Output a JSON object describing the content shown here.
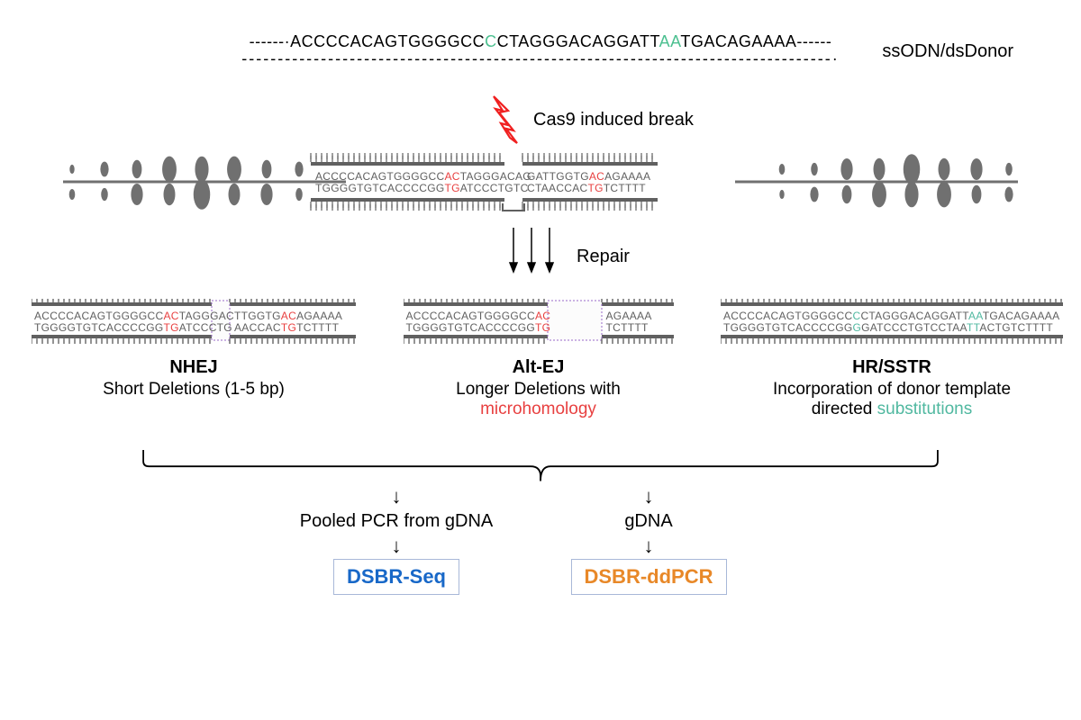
{
  "donor": {
    "label": "ssODN/dsDonor",
    "seq_parts": [
      {
        "t": "------·ACCCCACAGTGGGGCC",
        "c": "#000000"
      },
      {
        "t": "C",
        "c": "#4cc090"
      },
      {
        "t": "CTAGGGACAGGATT",
        "c": "#000000"
      },
      {
        "t": "AA",
        "c": "#4cc090"
      },
      {
        "t": "TGACAGAAAA------",
        "c": "#000000"
      }
    ],
    "dashes": "----------------------------------------------------------------------------------·"
  },
  "cas9_label": "Cas9 induced break",
  "repair_label": "Repair",
  "chromatin_seq": {
    "top_left": [
      {
        "t": "ACCCCACAGTGGGGCC",
        "c": "#606060"
      },
      {
        "t": "AC",
        "c": "#e84040"
      },
      {
        "t": "TAGGGACAG",
        "c": "#606060"
      }
    ],
    "bot_left": [
      {
        "t": "TGGGGTGTCACCCCGG",
        "c": "#606060"
      },
      {
        "t": "TG",
        "c": "#e84040"
      },
      {
        "t": "ATCCCTGTC",
        "c": "#606060"
      }
    ],
    "top_right": [
      {
        "t": "GATTGGTG",
        "c": "#606060"
      },
      {
        "t": "AC",
        "c": "#e84040"
      },
      {
        "t": "AGAAAA",
        "c": "#606060"
      }
    ],
    "bot_right": [
      {
        "t": "CTAACCAC",
        "c": "#606060"
      },
      {
        "t": "TG",
        "c": "#e84040"
      },
      {
        "t": "TCTTTT",
        "c": "#606060"
      }
    ]
  },
  "pathways": {
    "nhej": {
      "title": "NHEJ",
      "desc": "Short Deletions (1-5 bp)",
      "top_left": [
        {
          "t": "ACCCCACAGTGGGGCC",
          "c": "#606060"
        },
        {
          "t": "AC",
          "c": "#e84040"
        },
        {
          "t": "TAGGGAC",
          "c": "#606060"
        }
      ],
      "bot_left": [
        {
          "t": "TGGGGTGTCACCCCGG",
          "c": "#606060"
        },
        {
          "t": "TG",
          "c": "#e84040"
        },
        {
          "t": "ATCCCTG",
          "c": "#606060"
        }
      ],
      "top_right": [
        {
          "t": "TTGGTG",
          "c": "#606060"
        },
        {
          "t": "AC",
          "c": "#e84040"
        },
        {
          "t": "AGAAAA",
          "c": "#606060"
        }
      ],
      "bot_right": [
        {
          "t": "AACCAC",
          "c": "#606060"
        },
        {
          "t": "TG",
          "c": "#e84040"
        },
        {
          "t": "TCTTTT",
          "c": "#606060"
        }
      ]
    },
    "altej": {
      "title": "Alt-EJ",
      "desc_pre": "Longer Deletions with",
      "desc_highlight": "microhomology",
      "top_left": [
        {
          "t": "ACCCCACAGTGGGGCC",
          "c": "#606060"
        },
        {
          "t": "AC",
          "c": "#e84040"
        }
      ],
      "bot_left": [
        {
          "t": "TGGGGTGTCACCCCGG",
          "c": "#606060"
        },
        {
          "t": "TG",
          "c": "#e84040"
        }
      ],
      "top_right": [
        {
          "t": "AGAAAA",
          "c": "#606060"
        }
      ],
      "bot_right": [
        {
          "t": "TCTTTT",
          "c": "#606060"
        }
      ]
    },
    "hr": {
      "title": "HR/SSTR",
      "desc_pre": "Incorporation of donor template",
      "desc_line2_pre": "directed ",
      "desc_highlight": "substitutions",
      "top": [
        {
          "t": "ACCCCACAGTGGGGCC",
          "c": "#606060"
        },
        {
          "t": "C",
          "c": "#50b8a0"
        },
        {
          "t": "CTAGGGACAGGATT",
          "c": "#606060"
        },
        {
          "t": "AA",
          "c": "#50b8a0"
        },
        {
          "t": "TGACAGAAAA",
          "c": "#606060"
        }
      ],
      "bot": [
        {
          "t": "TGGGGTGTCACCCCGG",
          "c": "#606060"
        },
        {
          "t": "G",
          "c": "#50b8a0"
        },
        {
          "t": "GATCCCTGTCCTAA",
          "c": "#606060"
        },
        {
          "t": "TT",
          "c": "#50b8a0"
        },
        {
          "t": "ACTGTCTTTT",
          "c": "#606060"
        }
      ]
    }
  },
  "readouts": {
    "left": {
      "text": "Pooled PCR from gDNA",
      "box": "DSBR-Seq",
      "box_color": "#1868c8"
    },
    "right": {
      "text": "gDNA",
      "box": "DSBR-ddPCR",
      "box_color": "#e88828"
    }
  },
  "colors": {
    "nucleosome": "#707070",
    "dna_rail": "#606060",
    "lightning": "#f02020",
    "gap_border": "#9868c8"
  }
}
